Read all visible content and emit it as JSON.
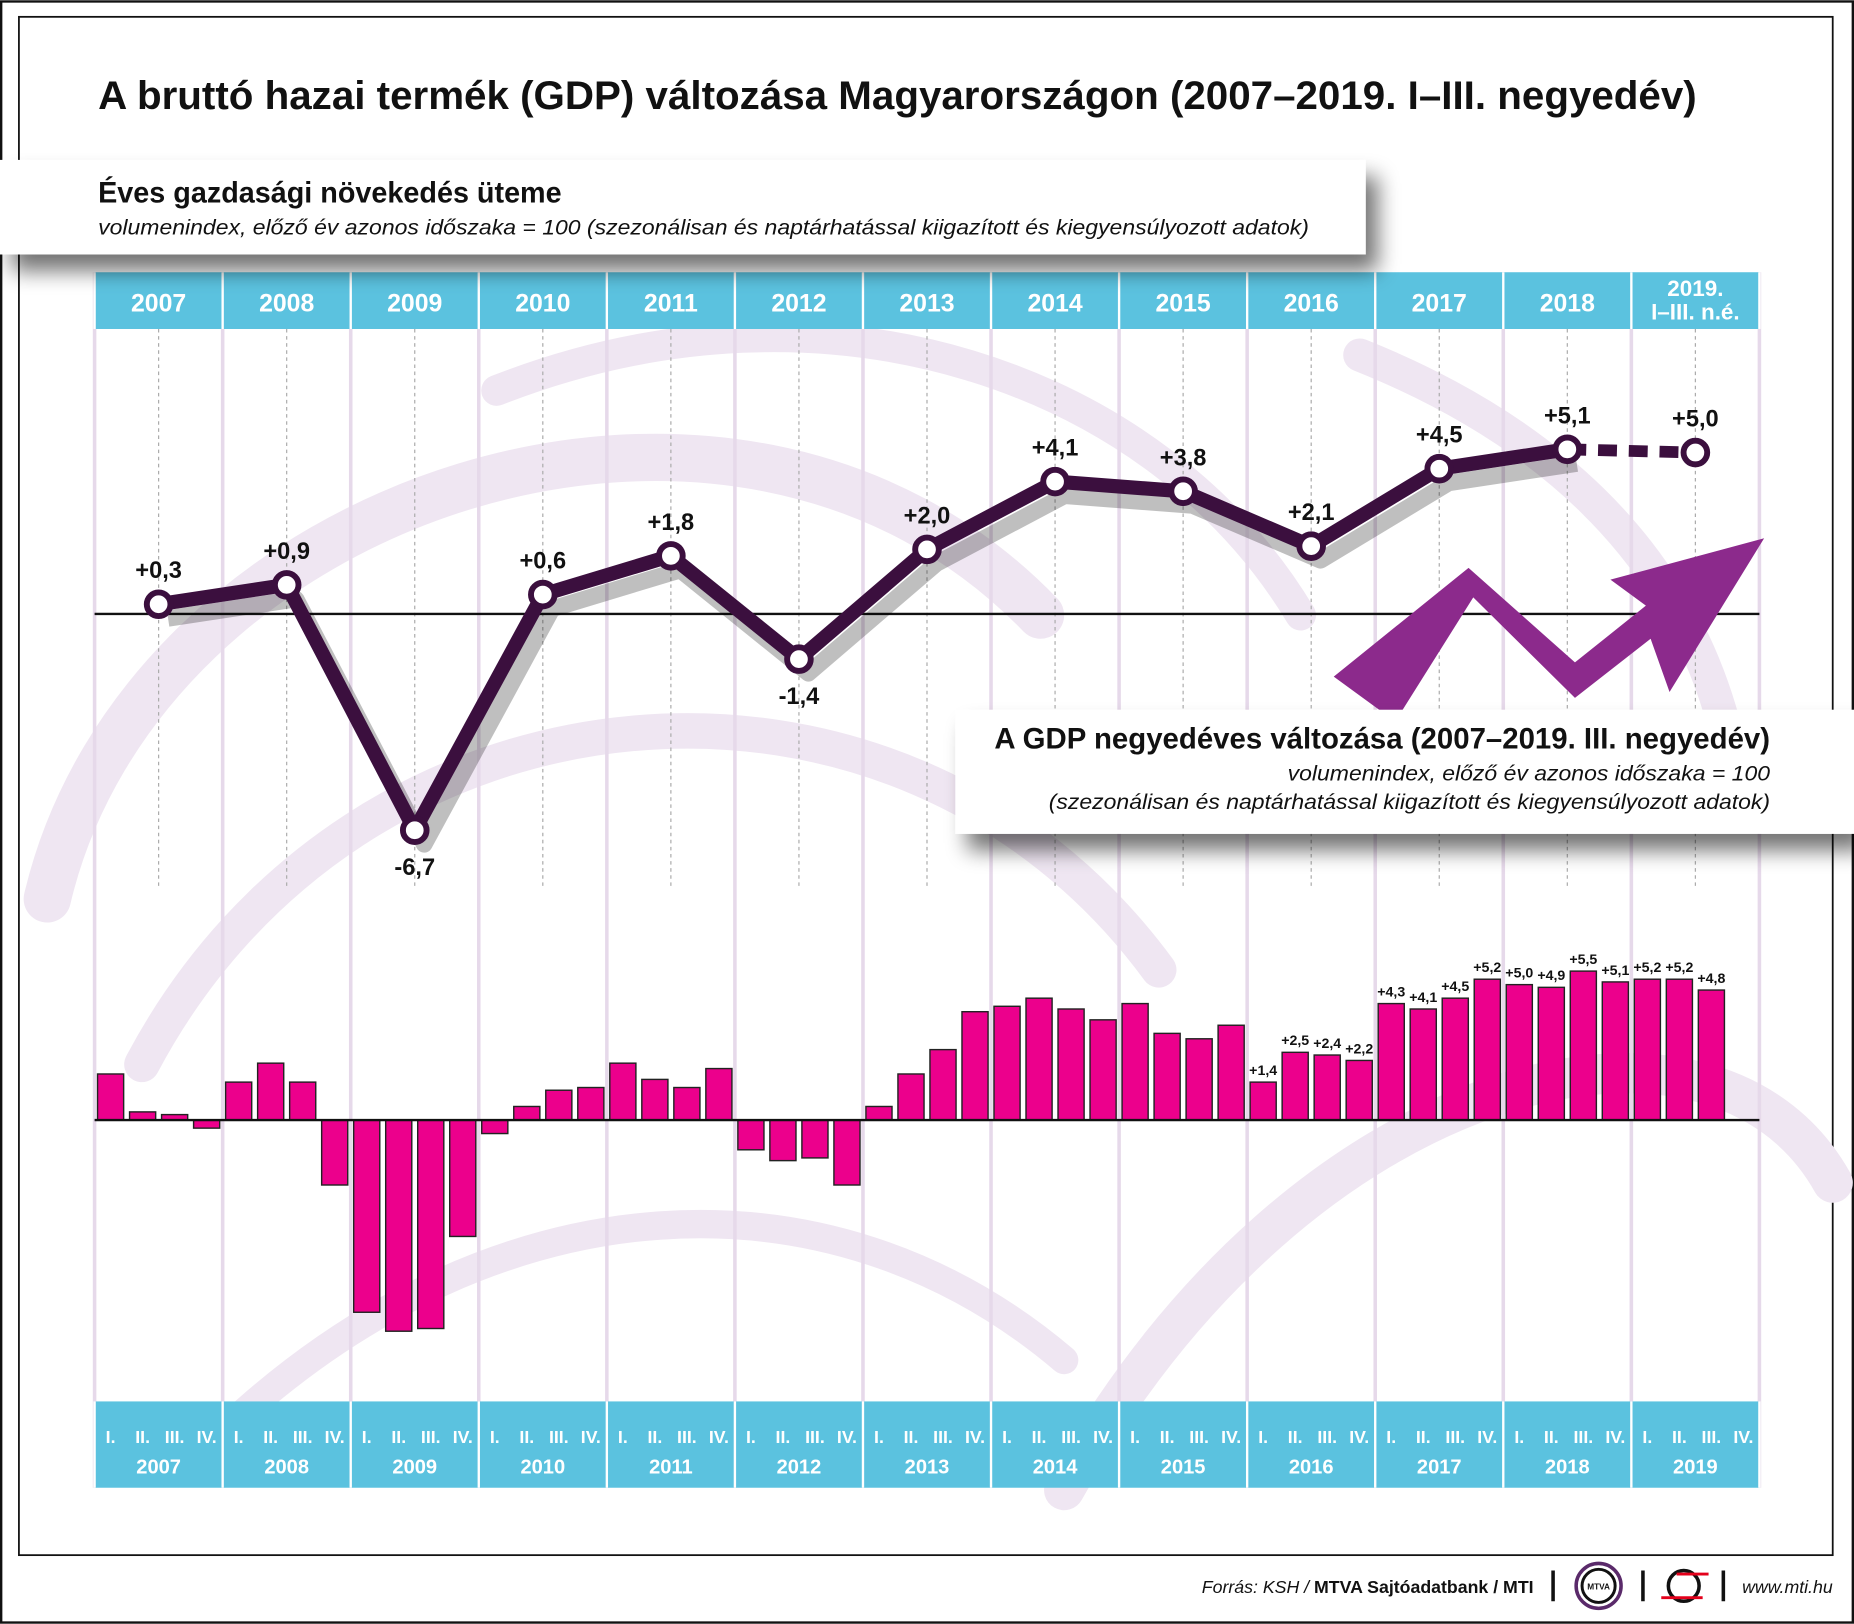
{
  "title": "A bruttó hazai termék (GDP) változása Magyarországon (2007–2019. I–III. negyedév)",
  "annual_box": {
    "title": "Éves gazdasági növekedés üteme",
    "subtitle": "volumenindex, előző év azonos időszaka = 100 (szezonálisan és naptárhatással kiigazított és kiegyensúlyozott adatok)"
  },
  "quarterly_box": {
    "title": "A GDP negyedéves változása (2007–2019. III. negyedév)",
    "subtitle1": "volumenindex, előző év azonos időszaka = 100",
    "subtitle2": "(szezonálisan és naptárhatással kiigazított és kiegyensúlyozott adatok)"
  },
  "colors": {
    "header_band": "#5bc2df",
    "line": "#3b0f3e",
    "bars": "#ec008c",
    "arrow": "#8c2a8c",
    "background_swirl": "#efe6f2"
  },
  "chart_data": [
    {
      "type": "line",
      "categories": [
        "2007",
        "2008",
        "2009",
        "2010",
        "2011",
        "2012",
        "2013",
        "2014",
        "2015",
        "2016",
        "2017",
        "2018",
        "2019. I–III. n.é."
      ],
      "category_labels": [
        [
          "2007"
        ],
        [
          "2008"
        ],
        [
          "2009"
        ],
        [
          "2010"
        ],
        [
          "2011"
        ],
        [
          "2012"
        ],
        [
          "2013"
        ],
        [
          "2014"
        ],
        [
          "2015"
        ],
        [
          "2016"
        ],
        [
          "2017"
        ],
        [
          "2018"
        ],
        [
          "2019.",
          "I–III. n.é."
        ]
      ],
      "values": [
        0.3,
        0.9,
        -6.7,
        0.6,
        1.8,
        -1.4,
        2.0,
        4.1,
        3.8,
        2.1,
        4.5,
        5.1,
        5.0
      ],
      "data_labels": [
        "+0,3",
        "+0,9",
        "-6,7",
        "+0,6",
        "+1,8",
        "-1,4",
        "+2,0",
        "+4,1",
        "+3,8",
        "+2,1",
        "+4,5",
        "+5,1",
        "+5,0"
      ],
      "last_segment": "dashed",
      "baseline": 0
    },
    {
      "type": "bar",
      "years": [
        "2007",
        "2008",
        "2009",
        "2010",
        "2011",
        "2012",
        "2013",
        "2014",
        "2015",
        "2016",
        "2017",
        "2018",
        "2019"
      ],
      "quarter_labels": [
        "I.",
        "II.",
        "III.",
        "IV."
      ],
      "values": [
        1.7,
        0.3,
        0.2,
        -0.3,
        1.4,
        2.1,
        1.4,
        -2.4,
        -7.1,
        -7.8,
        -7.7,
        -4.3,
        -0.5,
        0.5,
        1.1,
        1.2,
        2.1,
        1.5,
        1.2,
        1.9,
        -1.1,
        -1.5,
        -1.4,
        -2.4,
        0.5,
        1.7,
        2.6,
        4.0,
        4.2,
        4.5,
        4.1,
        3.7,
        4.3,
        3.2,
        3.0,
        3.5,
        1.4,
        2.5,
        2.4,
        2.2,
        4.3,
        4.1,
        4.5,
        5.2,
        5.0,
        4.9,
        5.5,
        5.1,
        5.2,
        5.2,
        4.8,
        null
      ],
      "data_labels": [
        null,
        null,
        null,
        null,
        null,
        null,
        null,
        null,
        null,
        null,
        null,
        null,
        null,
        null,
        null,
        null,
        null,
        null,
        null,
        null,
        null,
        null,
        null,
        null,
        null,
        null,
        null,
        null,
        null,
        null,
        null,
        null,
        null,
        null,
        null,
        null,
        "+1,4",
        "+2,5",
        "+2,4",
        "+2,2",
        "+4,3",
        "+4,1",
        "+4,5",
        "+5,2",
        "+5,0",
        "+4,9",
        "+5,5",
        "+5,1",
        "+5,2",
        "+5,2",
        "+4,8",
        null
      ],
      "baseline": 0
    }
  ],
  "footer": {
    "source_prefix": "Forrás: KSH / ",
    "source_bold": "MTVA Sajtóadatbank / MTI",
    "mtva_logo": "MTVA",
    "url": "www.mti.hu"
  }
}
